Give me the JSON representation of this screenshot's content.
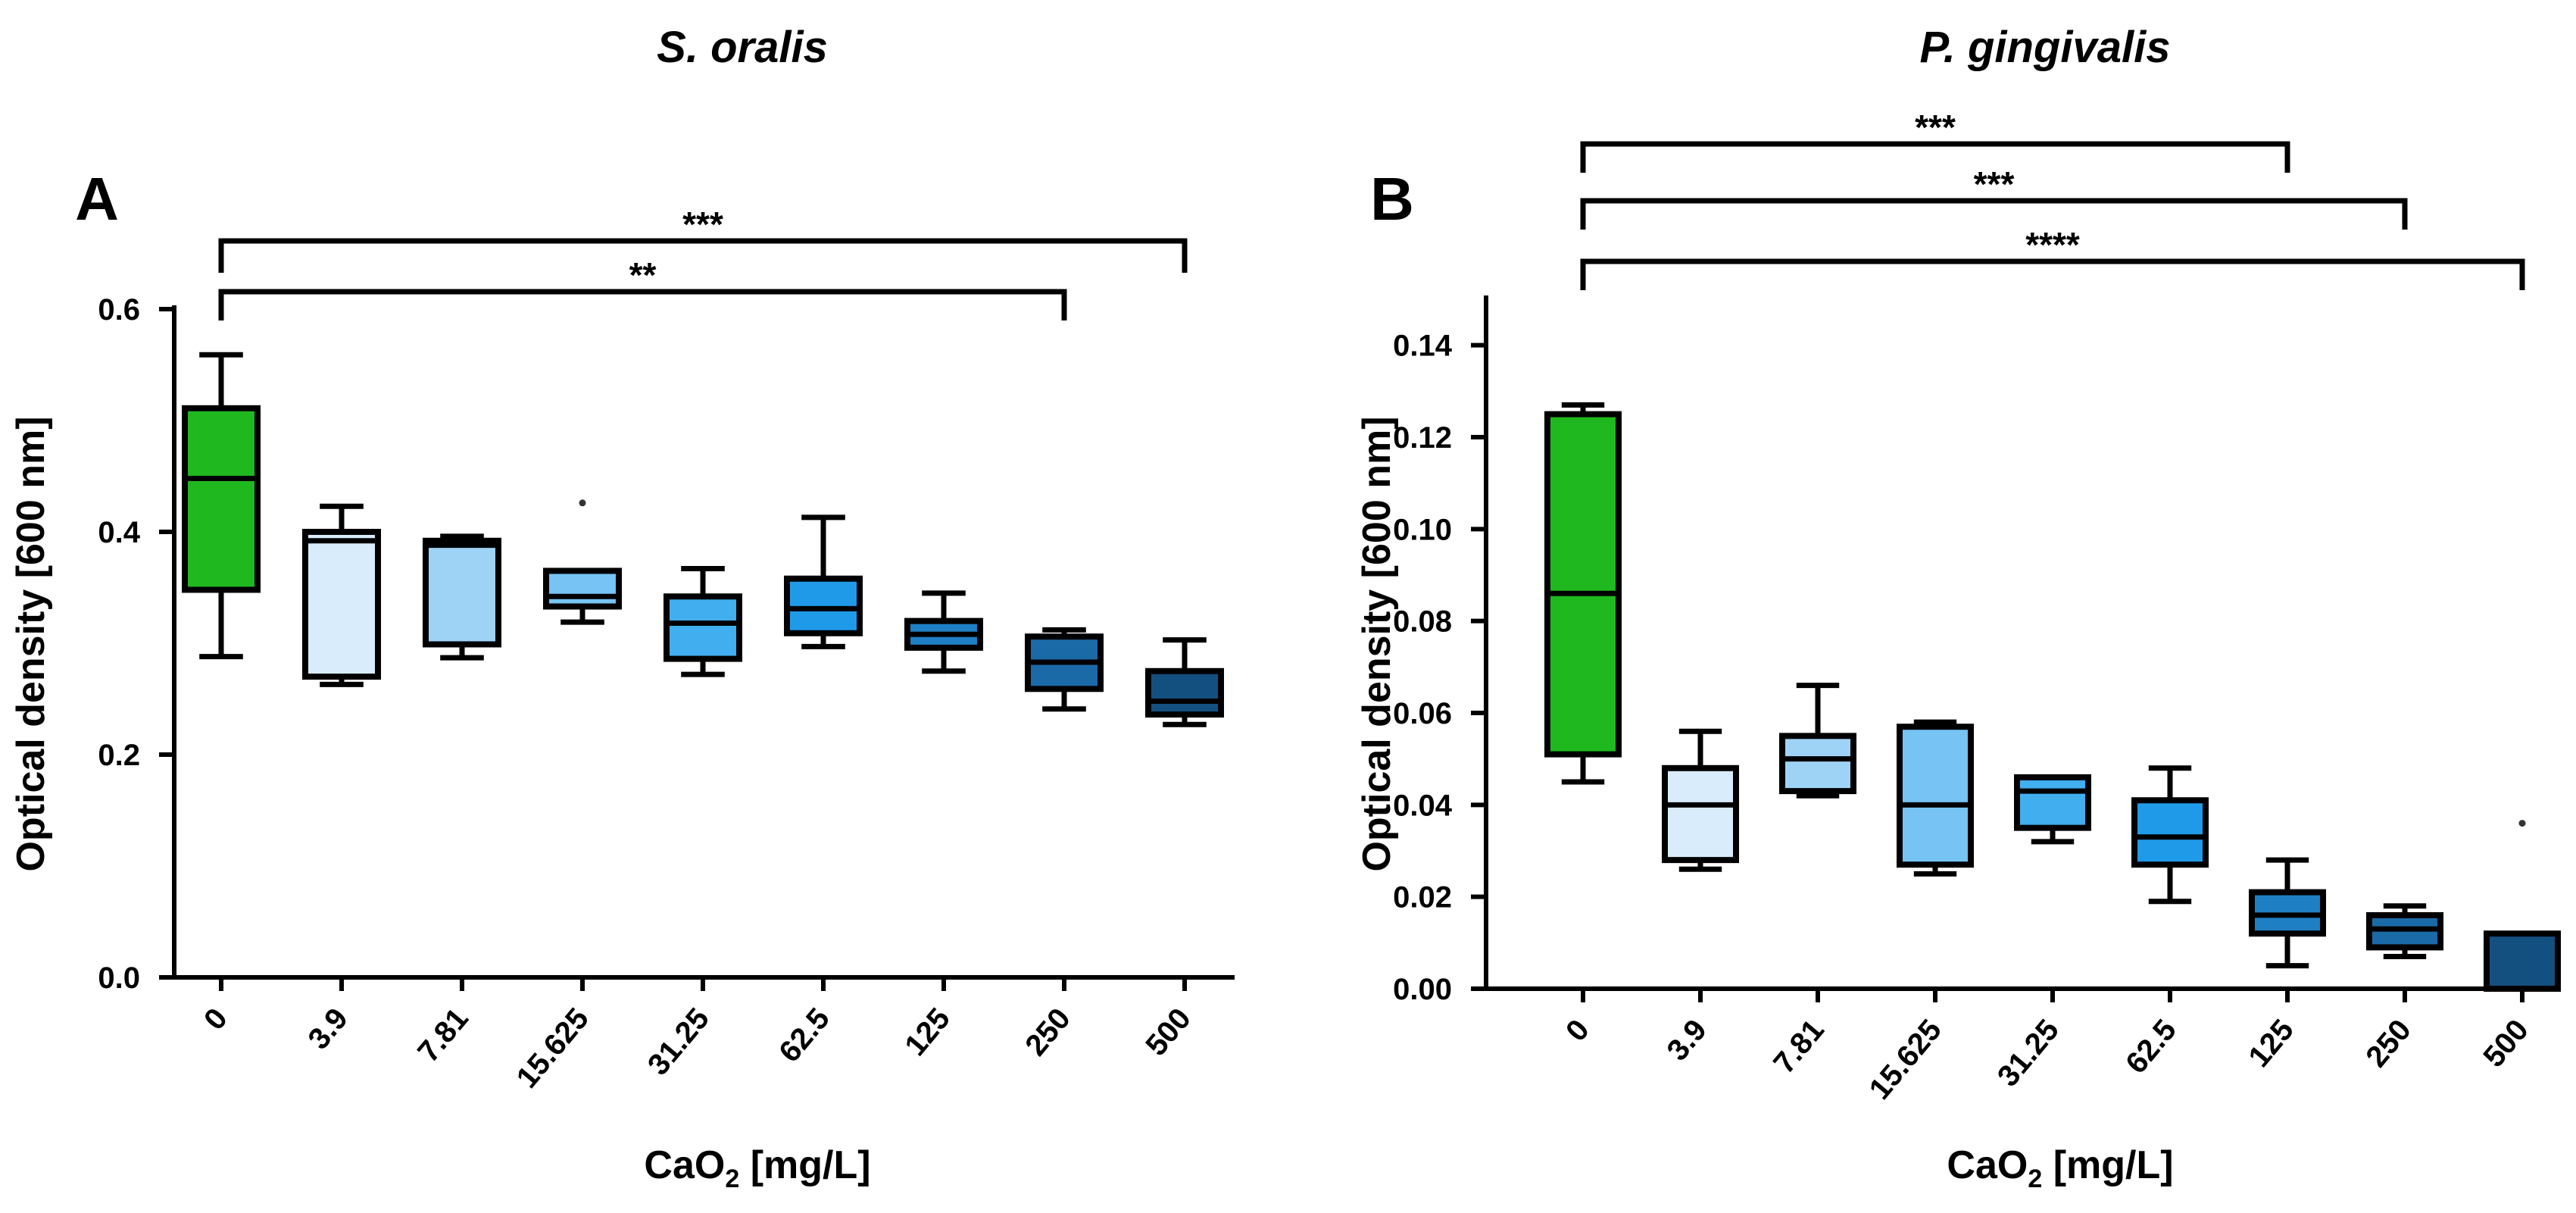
{
  "chart_data": [
    {
      "panel": "A",
      "type": "box",
      "title": "S. oralis",
      "ylabel": "Optical density [600 nm]",
      "xlabel": "CaO",
      "xlabel_sub": "2",
      "xlabel_unit": " [mg/L]",
      "ylim": [
        0,
        0.6
      ],
      "yticks": [
        "0.0",
        "0.2",
        "0.4",
        "0.6"
      ],
      "ytick_values": [
        0,
        0.2,
        0.4,
        0.6
      ],
      "categories": [
        "0",
        "3.9",
        "7.81",
        "15.625",
        "31.25",
        "62.5",
        "125",
        "250",
        "500"
      ],
      "boxes": [
        {
          "min": 0.288,
          "q1": 0.348,
          "median": 0.448,
          "q3": 0.511,
          "max": 0.559,
          "color": "#1fb81f"
        },
        {
          "min": 0.263,
          "q1": 0.27,
          "median": 0.392,
          "q3": 0.4,
          "max": 0.423,
          "color": "#d8ecfb"
        },
        {
          "min": 0.287,
          "q1": 0.299,
          "median": 0.388,
          "q3": 0.392,
          "max": 0.396,
          "color": "#9fd3f6"
        },
        {
          "min": 0.319,
          "q1": 0.333,
          "median": 0.342,
          "q3": 0.365,
          "max": 0.365,
          "color": "#76c3f4",
          "outliers": [
            0.426
          ]
        },
        {
          "min": 0.272,
          "q1": 0.286,
          "median": 0.318,
          "q3": 0.342,
          "max": 0.367,
          "color": "#41aef0"
        },
        {
          "min": 0.297,
          "q1": 0.309,
          "median": 0.331,
          "q3": 0.358,
          "max": 0.413,
          "color": "#1f9ae8"
        },
        {
          "min": 0.275,
          "q1": 0.296,
          "median": 0.308,
          "q3": 0.32,
          "max": 0.345,
          "color": "#1f7fc4"
        },
        {
          "min": 0.241,
          "q1": 0.259,
          "median": 0.283,
          "q3": 0.306,
          "max": 0.312,
          "color": "#1b6aa8"
        },
        {
          "min": 0.227,
          "q1": 0.236,
          "median": 0.248,
          "q3": 0.275,
          "max": 0.303,
          "color": "#14507f"
        }
      ],
      "brackets": [
        {
          "from": 0,
          "to": 8,
          "label": "***",
          "level": 1
        },
        {
          "from": 0,
          "to": 7,
          "label": "**",
          "level": 0
        }
      ]
    },
    {
      "panel": "B",
      "type": "box",
      "title": "P. gingivalis",
      "ylabel": "Optical density [600 nm]",
      "xlabel": "CaO",
      "xlabel_sub": "2",
      "xlabel_unit": " [mg/L]",
      "ylim": [
        0,
        0.15
      ],
      "yticks": [
        "0.00",
        "0.02",
        "0.04",
        "0.06",
        "0.08",
        "0.10",
        "0.12",
        "0.14"
      ],
      "ytick_values": [
        0,
        0.02,
        0.04,
        0.06,
        0.08,
        0.1,
        0.12,
        0.14
      ],
      "categories": [
        "0",
        "3.9",
        "7.81",
        "15.625",
        "31.25",
        "62.5",
        "125",
        "250",
        "500"
      ],
      "boxes": [
        {
          "min": 0.045,
          "q1": 0.051,
          "median": 0.086,
          "q3": 0.125,
          "max": 0.127,
          "color": "#1fb81f"
        },
        {
          "min": 0.026,
          "q1": 0.028,
          "median": 0.04,
          "q3": 0.048,
          "max": 0.056,
          "color": "#d8ecfb"
        },
        {
          "min": 0.042,
          "q1": 0.043,
          "median": 0.05,
          "q3": 0.055,
          "max": 0.066,
          "color": "#9fd3f6"
        },
        {
          "min": 0.025,
          "q1": 0.027,
          "median": 0.04,
          "q3": 0.057,
          "max": 0.058,
          "color": "#76c3f4"
        },
        {
          "min": 0.032,
          "q1": 0.035,
          "median": 0.043,
          "q3": 0.046,
          "max": 0.046,
          "color": "#41aef0"
        },
        {
          "min": 0.019,
          "q1": 0.027,
          "median": 0.033,
          "q3": 0.041,
          "max": 0.048,
          "color": "#1f9ae8"
        },
        {
          "min": 0.005,
          "q1": 0.012,
          "median": 0.016,
          "q3": 0.021,
          "max": 0.028,
          "color": "#1f7fc4"
        },
        {
          "min": 0.007,
          "q1": 0.009,
          "median": 0.013,
          "q3": 0.016,
          "max": 0.018,
          "color": "#1b6aa8"
        },
        {
          "min": 0.0,
          "q1": 0.0,
          "median": 0.0,
          "q3": 0.012,
          "max": 0.012,
          "color": "#14507f",
          "outliers": [
            0.036
          ]
        }
      ],
      "brackets": [
        {
          "from": 0,
          "to": 6,
          "label": "***",
          "level": 2
        },
        {
          "from": 0,
          "to": 7,
          "label": "***",
          "level": 1
        },
        {
          "from": 0,
          "to": 8,
          "label": "****",
          "level": 0
        }
      ]
    }
  ]
}
